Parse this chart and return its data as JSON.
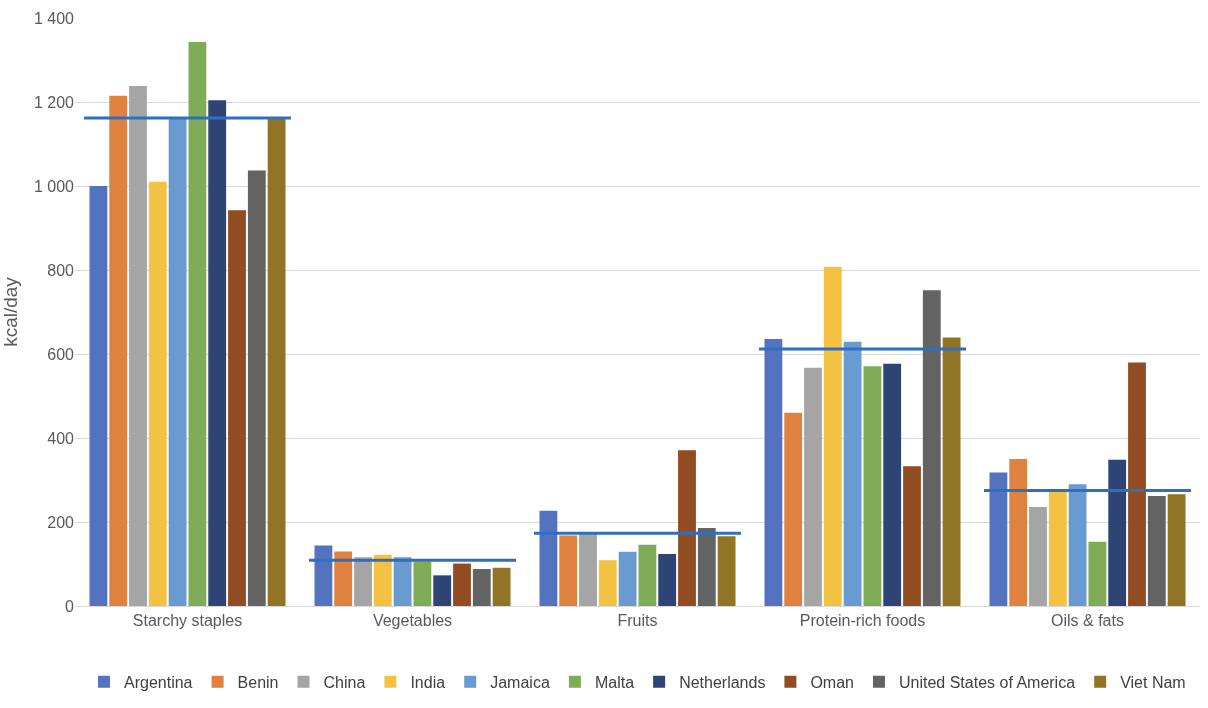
{
  "chart_data": {
    "type": "bar",
    "ylabel": "kcal/day",
    "categories": [
      "Starchy staples",
      "Vegetables",
      "Fruits",
      "Protein-rich foods",
      "Oils & fats"
    ],
    "series": [
      {
        "name": "Argentina",
        "color": "#5373c0",
        "values": [
          1000,
          144,
          227,
          636,
          318
        ]
      },
      {
        "name": "Benin",
        "color": "#e0823f",
        "values": [
          1215,
          130,
          168,
          460,
          350
        ]
      },
      {
        "name": "China",
        "color": "#a5a5a5",
        "values": [
          1238,
          116,
          172,
          567,
          236
        ]
      },
      {
        "name": "India",
        "color": "#f4c242",
        "values": [
          1010,
          122,
          109,
          808,
          272
        ]
      },
      {
        "name": "Jamaica",
        "color": "#6a9bd0",
        "values": [
          1163,
          116,
          129,
          629,
          290
        ]
      },
      {
        "name": "Malta",
        "color": "#80ab57",
        "values": [
          1343,
          106,
          146,
          571,
          153
        ]
      },
      {
        "name": "Netherlands",
        "color": "#2e4474",
        "values": [
          1204,
          73,
          124,
          577,
          348
        ]
      },
      {
        "name": "Oman",
        "color": "#914c21",
        "values": [
          942,
          101,
          371,
          333,
          580
        ]
      },
      {
        "name": "United States of America",
        "color": "#636363",
        "values": [
          1037,
          88,
          186,
          752,
          262
        ]
      },
      {
        "name": "Viet Nam",
        "color": "#927427",
        "values": [
          1162,
          91,
          166,
          639,
          266
        ]
      }
    ],
    "ref_lines": [
      {
        "axis": "y",
        "value": 1162,
        "color": "#2e6fbf"
      },
      {
        "axis": "y",
        "value": 109,
        "color": "#2e6fbf"
      },
      {
        "axis": "y",
        "value": 173,
        "color": "#2e6fbf"
      },
      {
        "axis": "y",
        "value": 612,
        "color": "#2e6fbf"
      },
      {
        "axis": "y",
        "value": 275,
        "color": "#2e6fbf"
      }
    ],
    "ylim": [
      0,
      1400
    ],
    "yticks": [
      0,
      200,
      400,
      600,
      800,
      {
        "value": 1000,
        "label": "1 000"
      },
      {
        "value": 1200,
        "label": "1 200"
      },
      {
        "value": 1400,
        "label": "1 400"
      }
    ],
    "grid": "y",
    "legend": "bottom"
  }
}
